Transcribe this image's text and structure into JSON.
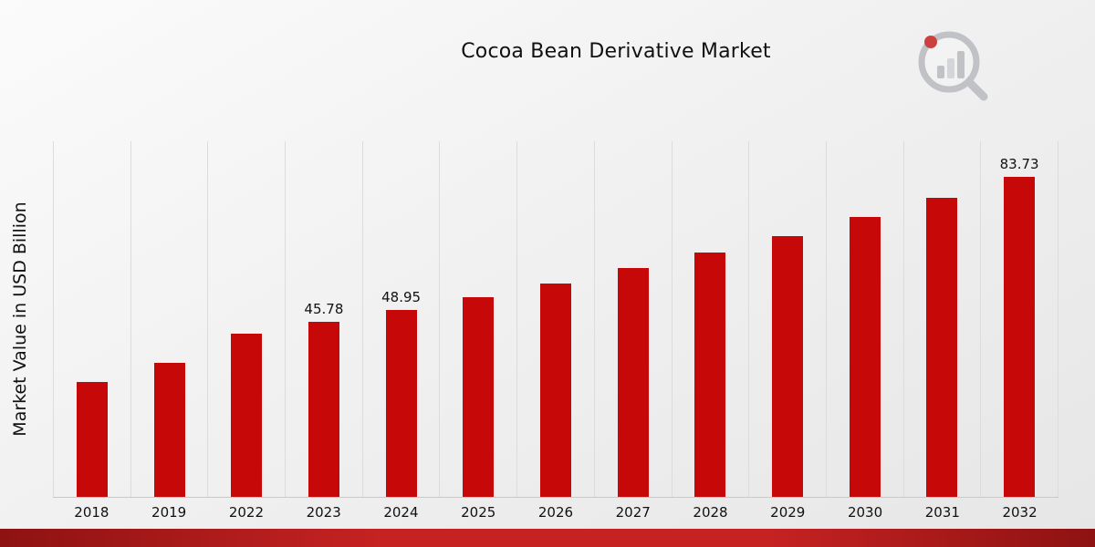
{
  "title": "Cocoa Bean Derivative Market",
  "ylabel": "Market Value in USD Billion",
  "colors": {
    "bar": "#c70808",
    "grid": "#dcdcdc",
    "footer_dark": "#8e1212",
    "footer_light": "#c62222"
  },
  "logo": {
    "name": "market-research-logo"
  },
  "chart_data": {
    "type": "bar",
    "title": "Cocoa Bean Derivative Market",
    "xlabel": "",
    "ylabel": "Market Value in USD Billion",
    "categories": [
      "2018",
      "2019",
      "2022",
      "2023",
      "2024",
      "2025",
      "2026",
      "2027",
      "2028",
      "2029",
      "2030",
      "2031",
      "2032"
    ],
    "values": [
      30.0,
      35.0,
      42.8,
      45.78,
      48.95,
      52.3,
      55.9,
      59.8,
      63.9,
      68.3,
      73.1,
      78.1,
      83.73
    ],
    "labels": [
      "",
      "",
      "",
      "45.78",
      "48.95",
      "",
      "",
      "",
      "",
      "",
      "",
      "",
      "83.73"
    ],
    "ylim": [
      0,
      93
    ],
    "grid": "vertical",
    "legend": "none",
    "bar_color": "#c70808"
  }
}
